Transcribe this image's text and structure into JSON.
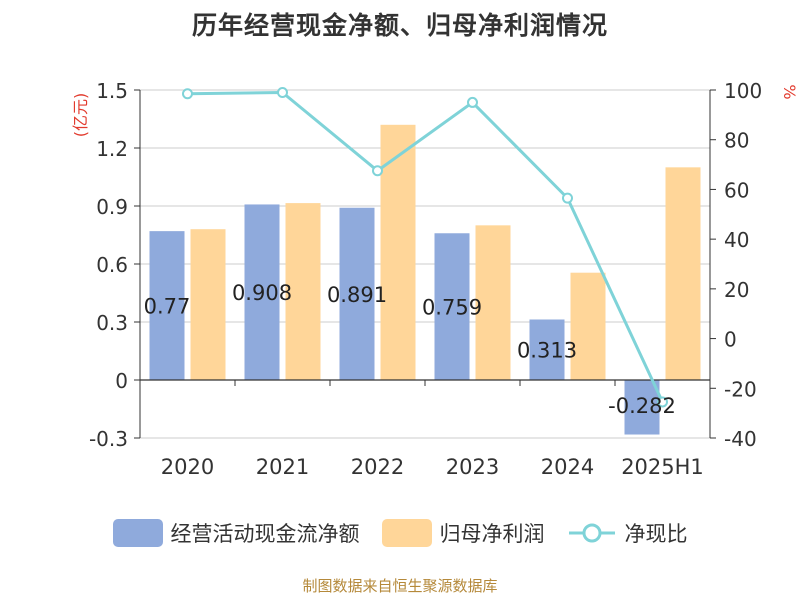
{
  "title": "历年经营现金净额、归母净利润情况",
  "source": "制图数据来自恒生聚源数据库",
  "colors": {
    "operating_cash": "#8faadc",
    "net_profit": "#ffd699",
    "net_cash_ratio": "#7fd3d8",
    "axis_unit_text": "#e23b2e",
    "grid": "#cccccc",
    "axis": "#333333"
  },
  "chart_data": {
    "type": "bar",
    "title": "历年经营现金净额、归母净利润情况",
    "categories": [
      "2020",
      "2021",
      "2022",
      "2023",
      "2024",
      "2025H1"
    ],
    "y_left": {
      "unit": "(亿元)",
      "range": [
        -0.3,
        1.5
      ],
      "ticks": [
        "-0.3",
        "0",
        "0.3",
        "0.6",
        "0.9",
        "1.2",
        "1.5"
      ]
    },
    "y_right": {
      "unit": "%",
      "range": [
        -40,
        100
      ],
      "ticks": [
        "-40",
        "-20",
        "0",
        "20",
        "40",
        "60",
        "80",
        "100"
      ]
    },
    "series": [
      {
        "name": "经营活动现金流净额",
        "type": "bar",
        "axis": "left",
        "values": [
          0.77,
          0.908,
          0.891,
          0.759,
          0.313,
          -0.282
        ],
        "labels": [
          "0.77",
          "0.908",
          "0.891",
          "0.759",
          "0.313",
          "-0.282"
        ]
      },
      {
        "name": "归母净利润",
        "type": "bar",
        "axis": "left",
        "values": [
          0.78,
          0.915,
          1.32,
          0.8,
          0.555,
          1.1
        ]
      },
      {
        "name": "净现比",
        "type": "line",
        "axis": "right",
        "values": [
          98.5,
          99.0,
          67.5,
          95.0,
          56.5,
          -25.5
        ]
      }
    ],
    "grid": true,
    "legend_position": "bottom"
  }
}
